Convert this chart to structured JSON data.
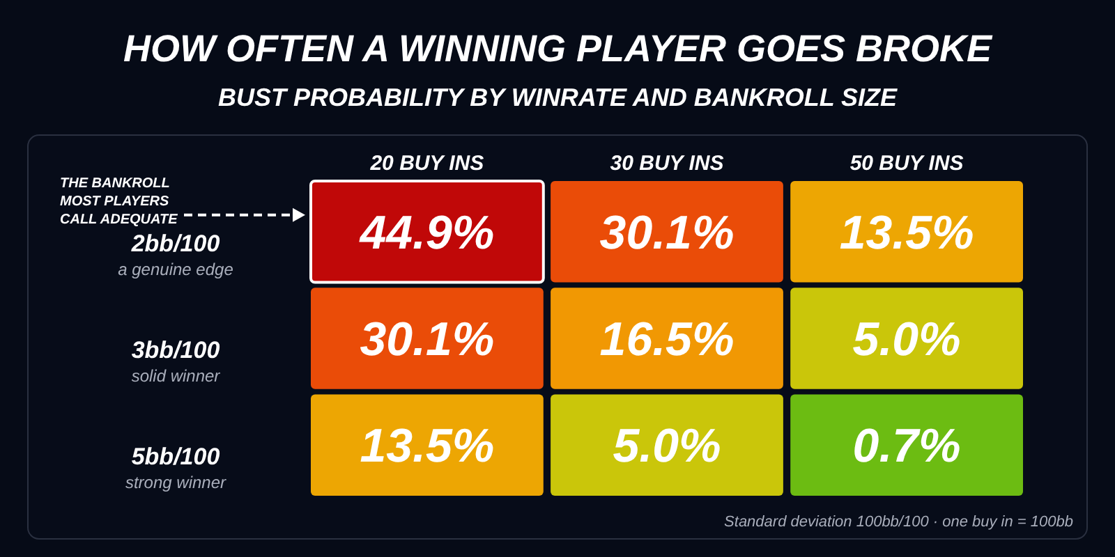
{
  "chart_data": {
    "type": "heatmap",
    "title": "HOW OFTEN A WINNING PLAYER GOES BROKE",
    "subtitle": "BUST PROBABILITY BY WINRATE AND BANKROLL SIZE",
    "categories": [
      "20 BUY INS",
      "30 BUY INS",
      "50 BUY INS"
    ],
    "y_categories": [
      "2bb/100\na genuine edge",
      "3bb/100\nsolid winner",
      "5bb/100\nstrong winner"
    ],
    "cells": [
      [
        44.9,
        30.1,
        13.5
      ],
      [
        30.1,
        16.5,
        5.0
      ],
      [
        13.5,
        5.0,
        0.7
      ]
    ],
    "cell_labels": [
      [
        "44.9%",
        "30.1%",
        "13.5%"
      ],
      [
        "30.1%",
        "16.5%",
        "5.0%"
      ],
      [
        "13.5%",
        "5.0%",
        "0.7%"
      ]
    ],
    "annotations": [
      "THE BANKROLL\nMOST PLAYERS\nCALL ADEQUATE",
      "Standard deviation 100bb/100 · one buy in = 100bb"
    ]
  }
}
